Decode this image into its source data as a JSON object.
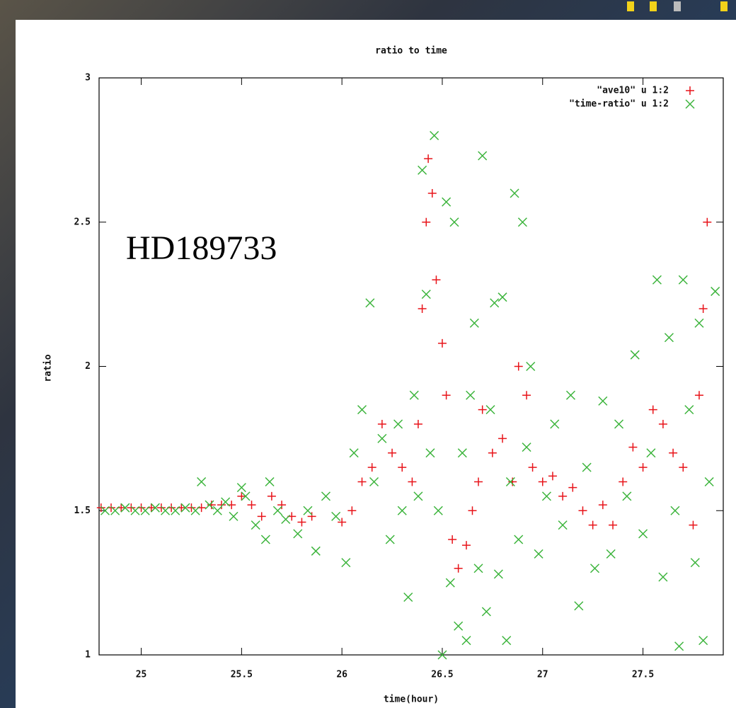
{
  "chart_data": {
    "type": "scatter",
    "title": "ratio to time",
    "x_label": "time(hour)",
    "y_label": "ratio",
    "annotation": "HD189733",
    "xlim": [
      24.79,
      27.9
    ],
    "ylim": [
      1,
      3
    ],
    "xticks": [
      25,
      25.5,
      26,
      26.5,
      27,
      27.5
    ],
    "yticks": [
      1,
      1.5,
      2,
      2.5,
      3
    ],
    "legend": "upper right",
    "series": [
      {
        "name": "\"ave10\" u 1:2",
        "color": "#e8141a",
        "marker": "plus",
        "x": [
          24.8,
          24.85,
          24.9,
          24.95,
          25.0,
          25.05,
          25.1,
          25.15,
          25.2,
          25.25,
          25.3,
          25.35,
          25.4,
          25.45,
          25.5,
          25.55,
          25.6,
          25.65,
          25.7,
          25.75,
          25.8,
          25.85,
          26.0,
          26.05,
          26.1,
          26.15,
          26.2,
          26.25,
          26.3,
          26.35,
          26.38,
          26.4,
          26.42,
          26.43,
          26.45,
          26.47,
          26.5,
          26.52,
          26.55,
          26.58,
          26.62,
          26.65,
          26.68,
          26.7,
          26.75,
          26.8,
          26.85,
          26.88,
          26.92,
          26.95,
          27.0,
          27.05,
          27.1,
          27.15,
          27.2,
          27.25,
          27.3,
          27.35,
          27.4,
          27.45,
          27.5,
          27.55,
          27.6,
          27.65,
          27.7,
          27.75,
          27.78,
          27.8,
          27.82
        ],
        "values": [
          1.51,
          1.51,
          1.51,
          1.51,
          1.51,
          1.51,
          1.51,
          1.51,
          1.51,
          1.51,
          1.51,
          1.52,
          1.52,
          1.52,
          1.55,
          1.52,
          1.48,
          1.55,
          1.52,
          1.48,
          1.46,
          1.48,
          1.46,
          1.5,
          1.6,
          1.65,
          1.8,
          1.7,
          1.65,
          1.6,
          1.8,
          2.2,
          2.5,
          2.72,
          2.6,
          2.3,
          2.08,
          1.9,
          1.4,
          1.3,
          1.38,
          1.5,
          1.6,
          1.85,
          1.7,
          1.75,
          1.6,
          2.0,
          1.9,
          1.65,
          1.6,
          1.62,
          1.55,
          1.58,
          1.5,
          1.45,
          1.52,
          1.45,
          1.6,
          1.72,
          1.65,
          1.85,
          1.8,
          1.7,
          1.65,
          1.45,
          1.9,
          2.2,
          2.5
        ]
      },
      {
        "name": "\"time-ratio\" u 1:2",
        "color": "#3cb43c",
        "marker": "cross",
        "x": [
          24.82,
          24.87,
          24.92,
          24.97,
          25.02,
          25.07,
          25.12,
          25.17,
          25.22,
          25.27,
          25.3,
          25.34,
          25.38,
          25.42,
          25.46,
          25.5,
          25.52,
          25.57,
          25.62,
          25.64,
          25.68,
          25.72,
          25.78,
          25.83,
          25.87,
          25.92,
          25.97,
          26.02,
          26.06,
          26.1,
          26.14,
          26.16,
          26.2,
          26.24,
          26.28,
          26.3,
          26.33,
          26.36,
          26.38,
          26.4,
          26.42,
          26.44,
          26.46,
          26.48,
          26.5,
          26.52,
          26.54,
          26.56,
          26.58,
          26.6,
          26.62,
          26.64,
          26.66,
          26.68,
          26.7,
          26.72,
          26.74,
          26.76,
          26.78,
          26.8,
          26.82,
          26.84,
          26.86,
          26.88,
          26.9,
          26.92,
          26.94,
          26.98,
          27.02,
          27.06,
          27.1,
          27.14,
          27.18,
          27.22,
          27.26,
          27.3,
          27.34,
          27.38,
          27.42,
          27.46,
          27.5,
          27.54,
          27.57,
          27.6,
          27.63,
          27.66,
          27.68,
          27.7,
          27.73,
          27.76,
          27.78,
          27.8,
          27.83,
          27.86
        ],
        "values": [
          1.5,
          1.5,
          1.51,
          1.5,
          1.5,
          1.51,
          1.5,
          1.5,
          1.51,
          1.5,
          1.6,
          1.52,
          1.5,
          1.53,
          1.48,
          1.58,
          1.55,
          1.45,
          1.4,
          1.6,
          1.5,
          1.47,
          1.42,
          1.5,
          1.36,
          1.55,
          1.48,
          1.32,
          1.7,
          1.85,
          2.22,
          1.6,
          1.75,
          1.4,
          1.8,
          1.5,
          1.2,
          1.9,
          1.55,
          2.68,
          2.25,
          1.7,
          2.8,
          1.5,
          1.0,
          2.57,
          1.25,
          2.5,
          1.1,
          1.7,
          1.05,
          1.9,
          2.15,
          1.3,
          2.73,
          1.15,
          1.85,
          2.22,
          1.28,
          2.24,
          1.05,
          1.6,
          2.6,
          1.4,
          2.5,
          1.72,
          2.0,
          1.35,
          1.55,
          1.8,
          1.45,
          1.9,
          1.17,
          1.65,
          1.3,
          1.88,
          1.35,
          1.8,
          1.55,
          2.04,
          1.42,
          1.7,
          2.3,
          1.27,
          2.1,
          1.5,
          1.03,
          2.3,
          1.85,
          1.32,
          2.15,
          1.05,
          1.6,
          2.26
        ]
      }
    ]
  }
}
